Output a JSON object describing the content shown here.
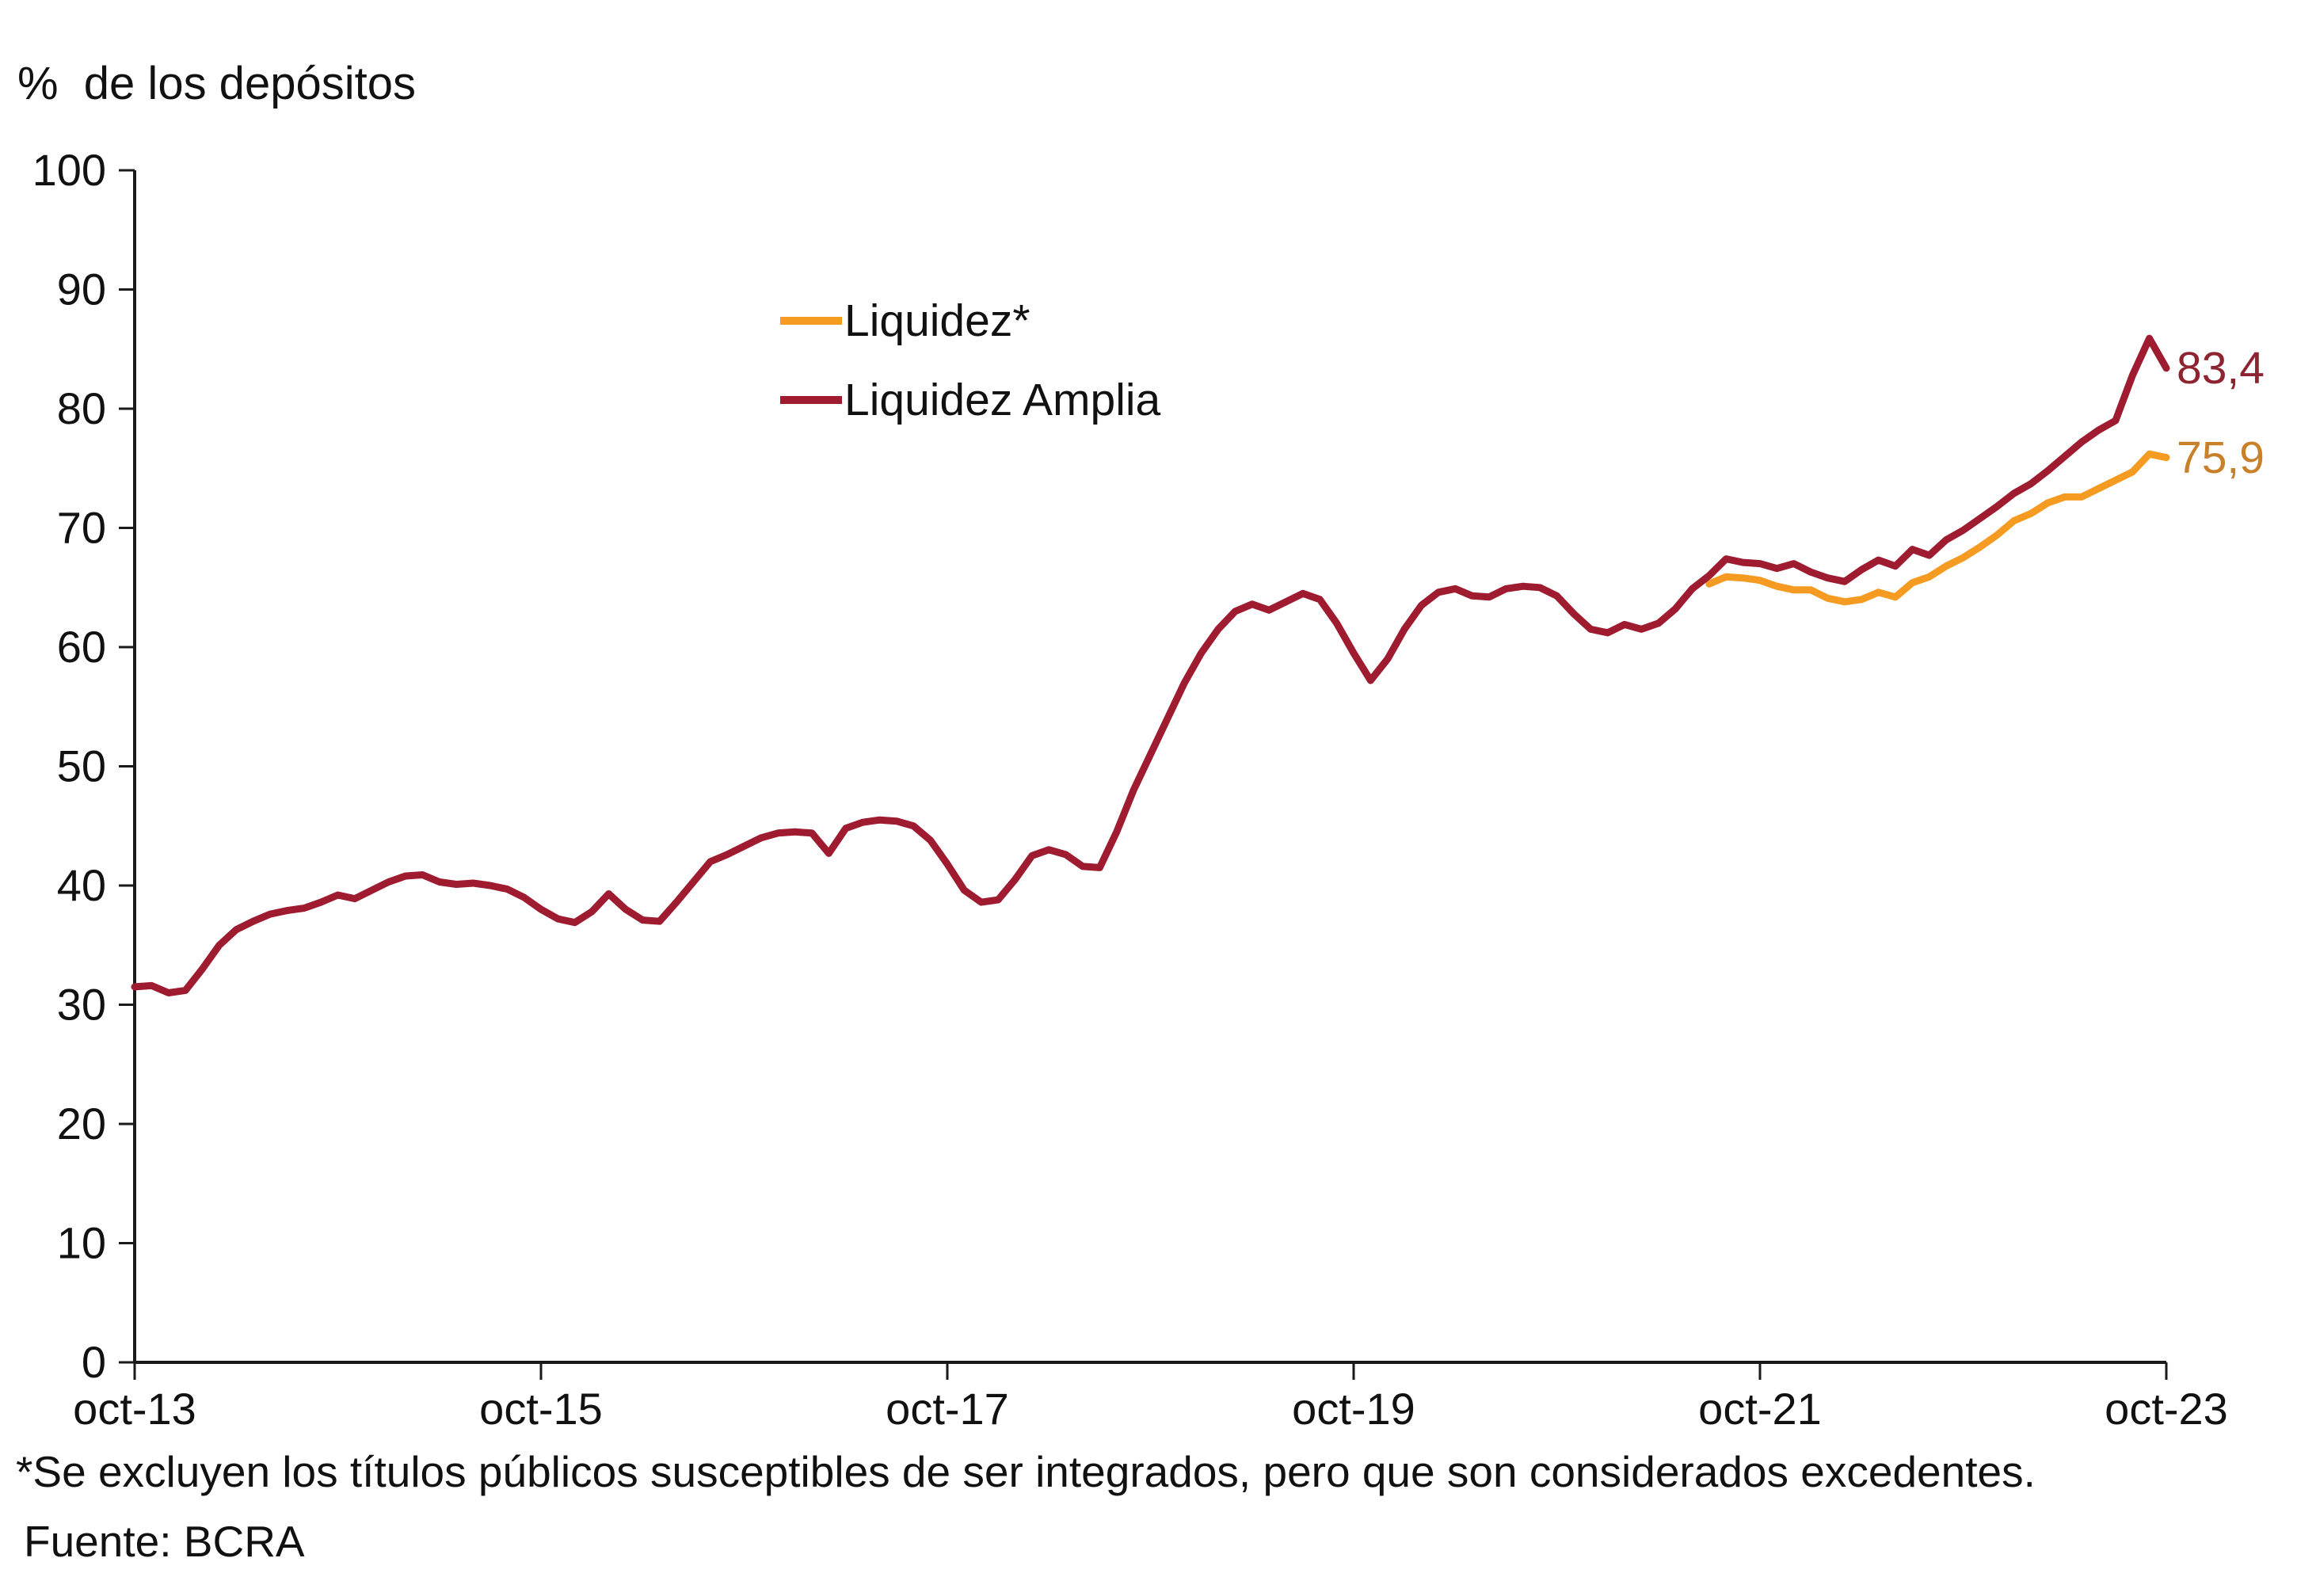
{
  "figure": {
    "y_axis_title": "%  de los depósitos"
  },
  "legend": [
    {
      "label": "Liquidez*",
      "color": "#F59B22"
    },
    {
      "label": "Liquidez Amplia",
      "color": "#9E1B30"
    }
  ],
  "end_labels": [
    {
      "series": "Liquidez Amplia",
      "text": "83,4",
      "value": 83.4,
      "color": "#8E2430"
    },
    {
      "series": "Liquidez*",
      "text": "75,9",
      "value": 75.9,
      "color": "#C8802B"
    }
  ],
  "footnote": "*Se excluyen los títulos públicos susceptibles de ser integrados, pero que son considerados excedentes.",
  "source": "Fuente: BCRA",
  "chart_data": {
    "type": "line",
    "title": "",
    "ylabel": "%  de los depósitos",
    "xlabel": "",
    "ylim": [
      0,
      100
    ],
    "y_ticks": [
      0,
      10,
      20,
      30,
      40,
      50,
      60,
      70,
      80,
      90,
      100
    ],
    "grid": false,
    "legend_position": "upper-center-left",
    "axis_color": "#1a1a1a",
    "frequency": "monthly",
    "x_start_label": "oct-13",
    "x_end_label": "oct-23",
    "x_months_total": 120,
    "x_ticks": [
      {
        "label": "oct-13",
        "month": 0
      },
      {
        "label": "oct-15",
        "month": 24
      },
      {
        "label": "oct-17",
        "month": 48
      },
      {
        "label": "oct-19",
        "month": 72
      },
      {
        "label": "oct-21",
        "month": 96
      },
      {
        "label": "oct-23",
        "month": 120
      }
    ],
    "series": [
      {
        "id": "liquidez",
        "name": "Liquidez*",
        "color": "#F59B22",
        "start_month": "jul-21",
        "start_month_index": 93,
        "end_value_label": "75,9",
        "values": [
          65.3,
          65.9,
          65.8,
          65.6,
          65.1,
          64.8,
          64.8,
          64.1,
          63.8,
          64.0,
          64.6,
          64.2,
          65.4,
          65.9,
          66.8,
          67.5,
          68.4,
          69.4,
          70.6,
          71.2,
          72.1,
          72.6,
          72.6,
          73.3,
          74.0,
          74.7,
          76.2,
          75.9
        ]
      },
      {
        "id": "liquidez-amplia",
        "name": "Liquidez Amplia",
        "color": "#9E1B30",
        "start_month": "oct-13",
        "start_month_index": 0,
        "end_value_label": "83,4",
        "values": [
          31.5,
          31.6,
          31.0,
          31.2,
          33.0,
          35.0,
          36.3,
          37.0,
          37.6,
          37.9,
          38.1,
          38.6,
          39.2,
          38.9,
          39.6,
          40.3,
          40.8,
          40.9,
          40.3,
          40.1,
          40.2,
          40.0,
          39.7,
          39.0,
          38.0,
          37.2,
          36.9,
          37.8,
          39.3,
          38.0,
          37.1,
          37.0,
          38.6,
          40.3,
          42.0,
          42.6,
          43.3,
          44.0,
          44.4,
          44.5,
          44.4,
          42.7,
          44.8,
          45.3,
          45.5,
          45.4,
          45.0,
          43.8,
          41.8,
          39.6,
          38.6,
          38.8,
          40.5,
          42.5,
          43.0,
          42.6,
          41.6,
          41.5,
          44.5,
          48.0,
          51.0,
          54.0,
          57.0,
          59.5,
          61.5,
          63.0,
          63.6,
          63.1,
          63.8,
          64.5,
          64.0,
          62.0,
          59.5,
          57.2,
          59.0,
          61.5,
          63.5,
          64.6,
          64.9,
          64.3,
          64.2,
          64.9,
          65.1,
          65.0,
          64.3,
          62.8,
          61.5,
          61.2,
          61.9,
          61.5,
          62.0,
          63.2,
          64.9,
          66.0,
          67.4,
          67.1,
          67.0,
          66.6,
          67.0,
          66.3,
          65.8,
          65.5,
          66.5,
          67.3,
          66.8,
          68.2,
          67.7,
          69.0,
          69.8,
          70.8,
          71.8,
          72.9,
          73.7,
          74.8,
          76.0,
          77.2,
          78.2,
          79.0,
          82.8,
          85.9,
          83.4
        ]
      }
    ]
  }
}
